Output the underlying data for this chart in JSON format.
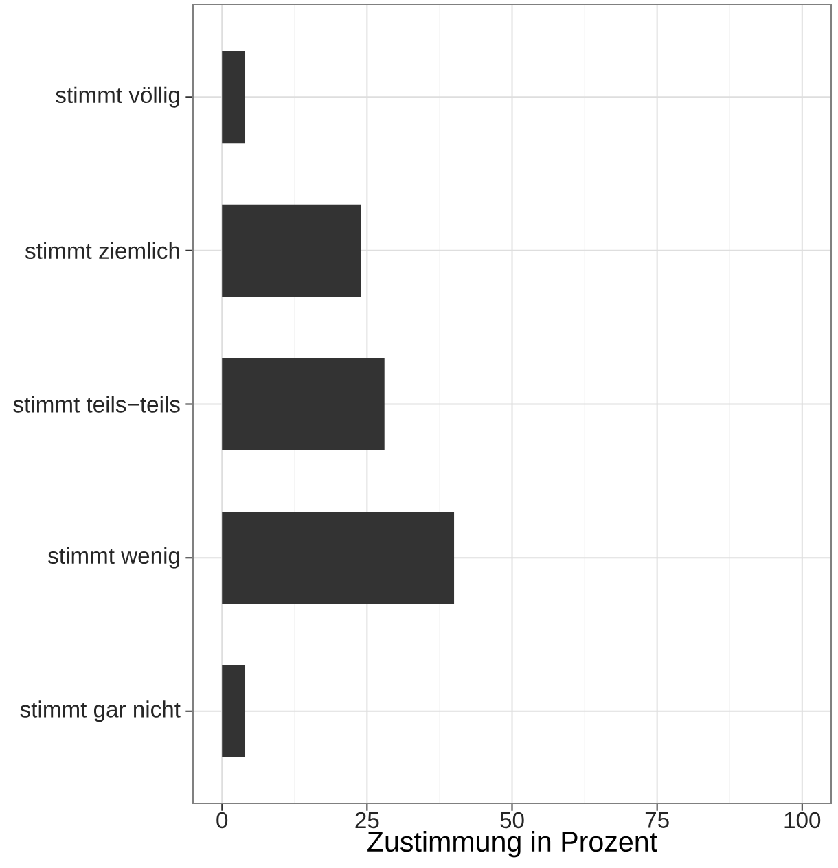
{
  "chart_data": {
    "type": "bar",
    "orientation": "horizontal",
    "xlabel": "Zustimmung in Prozent",
    "categories": [
      "stimmt völlig",
      "stimmt ziemlich",
      "stimmt teils−teils",
      "stimmt wenig",
      "stimmt gar nicht"
    ],
    "values": [
      4,
      24,
      28,
      40,
      4
    ],
    "color": "#333333",
    "xlim": [
      -5,
      105
    ],
    "xticks": [
      0,
      25,
      50,
      75,
      100
    ],
    "grid": true
  }
}
